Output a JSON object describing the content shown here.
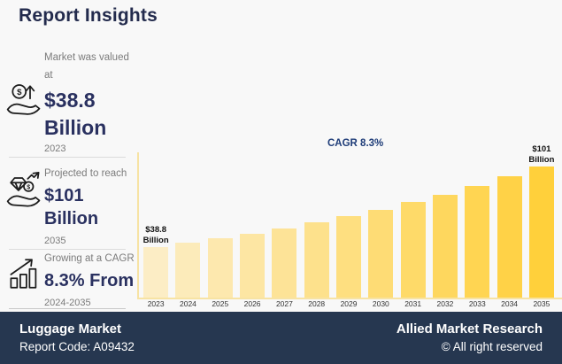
{
  "title": "Report Insights",
  "colors": {
    "background": "#F8F8F8",
    "heading": "#232B4D",
    "navy": "#2A3160",
    "muted": "#7B7B7B",
    "divider": "#DCDCDC",
    "axis": "#F7E3A4",
    "bar_start": "#FCEDC5",
    "bar_end": "#FFD03B",
    "cagr_text": "#1E3C78",
    "annotation_text": "#111111",
    "footer_bg": "#263750",
    "footer_text": "#FFFFFF"
  },
  "sidebar": {
    "items": [
      {
        "icon": "money-growth-icon",
        "label": "Market was valued at",
        "value": "$38.8 Billion",
        "period": "2023"
      },
      {
        "icon": "hand-diamond-icon",
        "label": "Projected to reach",
        "value": "$101 Billion",
        "period": "2035"
      },
      {
        "icon": "bar-growth-icon",
        "label": "Growing at a CAGR",
        "value": "8.3% From",
        "period": "2024-2035"
      }
    ]
  },
  "chart_data": {
    "type": "bar",
    "title": "CAGR 8.3%",
    "categories": [
      "2023",
      "2024",
      "2025",
      "2026",
      "2027",
      "2028",
      "2029",
      "2030",
      "2031",
      "2032",
      "2033",
      "2034",
      "2035"
    ],
    "values": [
      38.8,
      42.0,
      45.5,
      49.3,
      53.4,
      57.8,
      62.6,
      67.8,
      73.4,
      79.5,
      86.1,
      93.2,
      101
    ],
    "ylim": [
      0,
      110
    ],
    "grid": false,
    "legend": "none",
    "annotations": [
      {
        "index": 0,
        "text": "$38.8 Billion"
      },
      {
        "index": 12,
        "text": "$101 Billion"
      }
    ]
  },
  "footer": {
    "market": "Luggage Market",
    "report_code": "Report Code: A09432",
    "company": "Allied Market Research",
    "rights": "© All right reserved"
  }
}
